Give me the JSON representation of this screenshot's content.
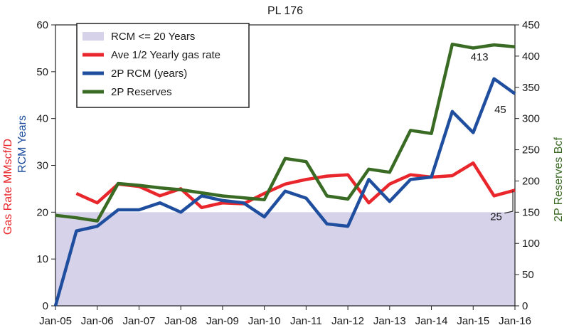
{
  "chart_data": {
    "type": "line",
    "title": "PL 176",
    "x_tick_labels": [
      "Jan-05",
      "Jan-06",
      "Jan-07",
      "Jan-08",
      "Jan-09",
      "Jan-10",
      "Jan-11",
      "Jan-12",
      "Jan-13",
      "Jan-14",
      "Jan-15",
      "Jan-16"
    ],
    "xlim": [
      2005.0,
      2016.0
    ],
    "y_left": {
      "label_part1": "Gas Rate MMscf/D",
      "label_part2": "RCM Years",
      "label_color1": "#e8262b",
      "label_color2": "#1f4e9f",
      "range": [
        0,
        60
      ],
      "ticks": [
        "0",
        "10",
        "20",
        "30",
        "40",
        "50",
        "60"
      ]
    },
    "y_right": {
      "label": "2P Reserves Bcf",
      "label_color": "#3a6b24",
      "range": [
        0,
        450
      ],
      "ticks": [
        "0",
        "50",
        "100",
        "150",
        "200",
        "250",
        "300",
        "350",
        "400",
        "450"
      ]
    },
    "shaded_region": {
      "name": "RCM <= 20 Years",
      "y_from": 0,
      "y_to": 20,
      "color": "#d6d2ea"
    },
    "legend": [
      {
        "label": "RCM <= 20 Years",
        "kind": "patch",
        "color": "#d6d2ea"
      },
      {
        "label": "Ave 1/2 Yearly gas rate",
        "kind": "line",
        "color": "#e8262b"
      },
      {
        "label": "2P RCM (years)",
        "kind": "line",
        "color": "#1f4e9f"
      },
      {
        "label": "2P Reserves",
        "kind": "line",
        "color": "#3a6b24"
      }
    ],
    "series": [
      {
        "name": "Ave 1/2 Yearly gas rate",
        "axis": "left",
        "color": "#e8262b",
        "x": [
          2005.5,
          2006.0,
          2006.5,
          2007.0,
          2007.5,
          2008.0,
          2008.5,
          2009.0,
          2009.5,
          2010.0,
          2010.5,
          2011.0,
          2011.5,
          2012.0,
          2012.5,
          2013.0,
          2013.5,
          2014.0,
          2014.5,
          2015.0,
          2015.5,
          2016.0
        ],
        "values": [
          24,
          22,
          26,
          25.5,
          23.5,
          25,
          21,
          22,
          21.8,
          24,
          26,
          27,
          27.7,
          28,
          22,
          26,
          28,
          27.5,
          27.8,
          30.5,
          23.5,
          24.7
        ]
      },
      {
        "name": "2P RCM (years)",
        "axis": "left",
        "color": "#1f4e9f",
        "x": [
          2005.0,
          2005.5,
          2006.0,
          2006.5,
          2007.0,
          2007.5,
          2008.0,
          2008.5,
          2009.0,
          2009.5,
          2010.0,
          2010.5,
          2011.0,
          2011.5,
          2012.0,
          2012.5,
          2013.0,
          2013.5,
          2014.0,
          2014.5,
          2015.0,
          2015.5,
          2016.0
        ],
        "values": [
          0,
          16,
          17,
          20.5,
          20.5,
          22,
          20,
          23.5,
          22.5,
          22,
          19,
          24.5,
          23,
          17.5,
          17,
          27,
          22.3,
          27,
          27.5,
          41.5,
          37,
          48.5,
          45.3
        ]
      },
      {
        "name": "2P Reserves",
        "axis": "right",
        "color": "#3a6b24",
        "x": [
          2005.0,
          2005.5,
          2006.0,
          2006.5,
          2007.0,
          2007.5,
          2008.0,
          2008.5,
          2009.0,
          2009.5,
          2010.0,
          2010.5,
          2011.0,
          2011.5,
          2012.0,
          2012.5,
          2013.0,
          2013.5,
          2014.0,
          2014.5,
          2015.0,
          2015.5,
          2016.0
        ],
        "values": [
          145,
          141,
          136,
          196,
          193,
          189,
          186,
          181,
          176,
          173,
          170,
          236,
          231,
          176,
          171,
          219,
          214,
          281,
          276,
          419,
          413,
          418,
          415
        ]
      }
    ],
    "annotations": [
      {
        "text": "413",
        "x": 2015.0,
        "y": 413,
        "axis": "right"
      },
      {
        "text": "45",
        "x": 2015.6,
        "y": 45,
        "axis": "left"
      },
      {
        "text": "25",
        "x": 2015.7,
        "y": 25,
        "axis": "left"
      }
    ]
  }
}
